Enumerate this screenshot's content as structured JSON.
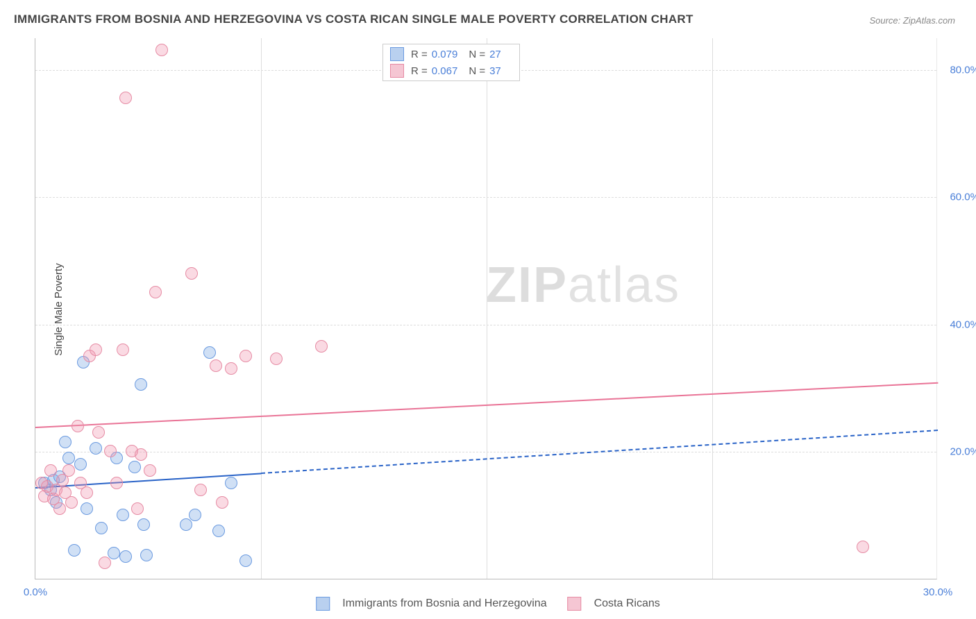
{
  "title": "IMMIGRANTS FROM BOSNIA AND HERZEGOVINA VS COSTA RICAN SINGLE MALE POVERTY CORRELATION CHART",
  "source": "Source: ZipAtlas.com",
  "ylabel": "Single Male Poverty",
  "watermark_bold": "ZIP",
  "watermark_thin": "atlas",
  "chart": {
    "type": "scatter",
    "background_color": "#ffffff",
    "grid_color": "#dddddd",
    "axis_color": "#bbbbbb",
    "xlim": [
      0,
      30
    ],
    "ylim": [
      0,
      85
    ],
    "yticks": [
      {
        "v": 20,
        "label": "20.0%"
      },
      {
        "v": 40,
        "label": "40.0%"
      },
      {
        "v": 60,
        "label": "60.0%"
      },
      {
        "v": 80,
        "label": "80.0%"
      }
    ],
    "xticks": [
      {
        "v": 0,
        "label": "0.0%"
      },
      {
        "v": 30,
        "label": "30.0%"
      }
    ],
    "xticks_minor": [
      7.5,
      15,
      22.5
    ],
    "series": [
      {
        "name": "Immigrants from Bosnia and Herzegovina",
        "marker_fill": "rgba(120,165,225,0.35)",
        "marker_stroke": "#6a9ae0",
        "marker_size": 18,
        "legend_swatch_fill": "#b9d0ef",
        "legend_swatch_stroke": "#6a9ae0",
        "R": "0.079",
        "N": "27",
        "points": [
          {
            "x": 0.3,
            "y": 15
          },
          {
            "x": 0.5,
            "y": 14
          },
          {
            "x": 0.6,
            "y": 15.5
          },
          {
            "x": 0.7,
            "y": 12
          },
          {
            "x": 0.8,
            "y": 16
          },
          {
            "x": 1.0,
            "y": 21.5
          },
          {
            "x": 1.1,
            "y": 19
          },
          {
            "x": 1.3,
            "y": 4.5
          },
          {
            "x": 1.5,
            "y": 18
          },
          {
            "x": 1.6,
            "y": 34
          },
          {
            "x": 1.7,
            "y": 11
          },
          {
            "x": 2.0,
            "y": 20.5
          },
          {
            "x": 2.2,
            "y": 8
          },
          {
            "x": 2.6,
            "y": 4
          },
          {
            "x": 2.7,
            "y": 19
          },
          {
            "x": 2.9,
            "y": 10
          },
          {
            "x": 3.0,
            "y": 3.5
          },
          {
            "x": 3.3,
            "y": 17.5
          },
          {
            "x": 3.5,
            "y": 30.5
          },
          {
            "x": 3.6,
            "y": 8.5
          },
          {
            "x": 3.7,
            "y": 3.7
          },
          {
            "x": 5.0,
            "y": 8.5
          },
          {
            "x": 5.3,
            "y": 10
          },
          {
            "x": 5.8,
            "y": 35.5
          },
          {
            "x": 6.1,
            "y": 7.5
          },
          {
            "x": 7.0,
            "y": 2.8
          },
          {
            "x": 6.5,
            "y": 15
          }
        ],
        "trend_line": {
          "color": "#2862c7",
          "width": 2,
          "solid_from_x": 0,
          "solid_to_x": 7.5,
          "dash_from_x": 7.5,
          "dash_to_x": 30,
          "y_at_x0": 14.5,
          "y_at_x30": 23.5
        }
      },
      {
        "name": "Costa Ricans",
        "marker_fill": "rgba(240,150,175,0.35)",
        "marker_stroke": "#e68aa3",
        "marker_size": 18,
        "legend_swatch_fill": "#f5c6d3",
        "legend_swatch_stroke": "#e68aa3",
        "R": "0.067",
        "N": "37",
        "points": [
          {
            "x": 0.2,
            "y": 15
          },
          {
            "x": 0.3,
            "y": 13
          },
          {
            "x": 0.4,
            "y": 14.5
          },
          {
            "x": 0.5,
            "y": 17
          },
          {
            "x": 0.6,
            "y": 12.5
          },
          {
            "x": 0.7,
            "y": 14
          },
          {
            "x": 0.8,
            "y": 11
          },
          {
            "x": 0.9,
            "y": 15.5
          },
          {
            "x": 1.0,
            "y": 13.5
          },
          {
            "x": 1.1,
            "y": 17
          },
          {
            "x": 1.2,
            "y": 12
          },
          {
            "x": 1.4,
            "y": 24
          },
          {
            "x": 1.5,
            "y": 15
          },
          {
            "x": 1.7,
            "y": 13.5
          },
          {
            "x": 1.8,
            "y": 35
          },
          {
            "x": 2.0,
            "y": 36
          },
          {
            "x": 2.1,
            "y": 23
          },
          {
            "x": 2.3,
            "y": 2.5
          },
          {
            "x": 2.5,
            "y": 20
          },
          {
            "x": 2.7,
            "y": 15
          },
          {
            "x": 2.9,
            "y": 36
          },
          {
            "x": 3.0,
            "y": 75.5
          },
          {
            "x": 3.2,
            "y": 20
          },
          {
            "x": 3.4,
            "y": 11
          },
          {
            "x": 3.5,
            "y": 19.5
          },
          {
            "x": 3.8,
            "y": 17
          },
          {
            "x": 4.0,
            "y": 45
          },
          {
            "x": 4.2,
            "y": 83
          },
          {
            "x": 5.2,
            "y": 48
          },
          {
            "x": 5.5,
            "y": 14
          },
          {
            "x": 6.0,
            "y": 33.5
          },
          {
            "x": 6.2,
            "y": 12
          },
          {
            "x": 6.5,
            "y": 33
          },
          {
            "x": 7.0,
            "y": 35
          },
          {
            "x": 8.0,
            "y": 34.5
          },
          {
            "x": 9.5,
            "y": 36.5
          },
          {
            "x": 27.5,
            "y": 5
          }
        ],
        "trend_line": {
          "color": "#e97396",
          "width": 2,
          "solid_from_x": 0,
          "solid_to_x": 30,
          "y_at_x0": 24,
          "y_at_x30": 31
        }
      }
    ]
  }
}
